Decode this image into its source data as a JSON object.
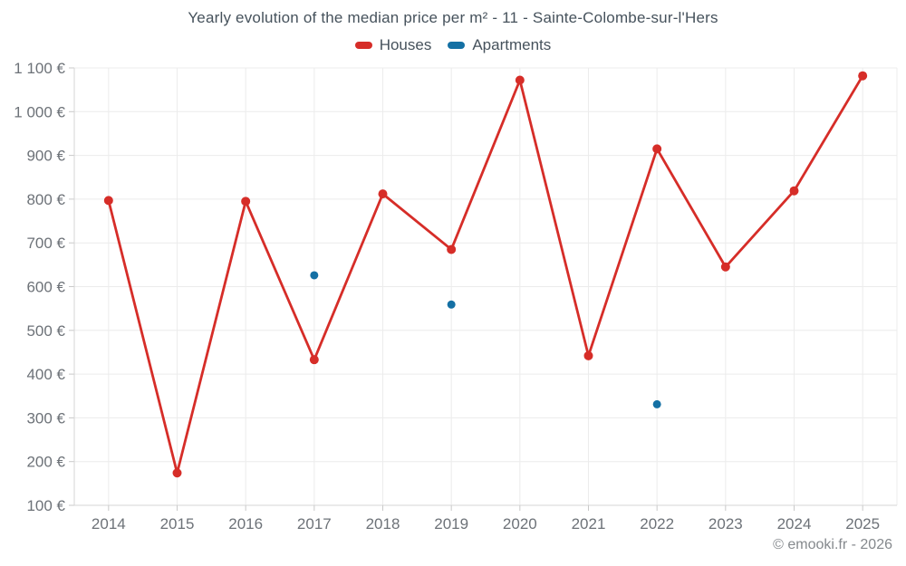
{
  "title": "Yearly evolution of the median price per m² - 11 - Sainte-Colombe-sur-l'Hers",
  "legend": {
    "houses": {
      "label": "Houses",
      "color": "#d62d28"
    },
    "apartments": {
      "label": "Apartments",
      "color": "#1470a4"
    }
  },
  "copyright": "© emooki.fr - 2026",
  "chart_data": {
    "type": "line",
    "title": "Yearly evolution of the median price per m² - 11 - Sainte-Colombe-sur-l'Hers",
    "x": [
      2014,
      2015,
      2016,
      2017,
      2018,
      2019,
      2020,
      2021,
      2022,
      2023,
      2024,
      2025
    ],
    "series": [
      {
        "name": "Houses",
        "type": "line",
        "color": "#d62d28",
        "values": [
          797,
          174,
          795,
          433,
          812,
          685,
          1072,
          442,
          915,
          645,
          819,
          1082
        ]
      },
      {
        "name": "Apartments",
        "type": "scatter",
        "color": "#1470a4",
        "values": [
          null,
          null,
          null,
          626,
          null,
          559,
          null,
          null,
          331,
          null,
          null,
          null
        ]
      }
    ],
    "ylim": [
      100,
      1100
    ],
    "ytick_step": 100,
    "ytick_suffix": " €",
    "grid": true,
    "legend_position": "top",
    "colors": {
      "grid": "#ececec",
      "axis": "#d6d6d6",
      "tick": "#c9c9c9",
      "tick_label": "#6d7278",
      "title": "#46525c",
      "copyright": "#85898d"
    }
  }
}
